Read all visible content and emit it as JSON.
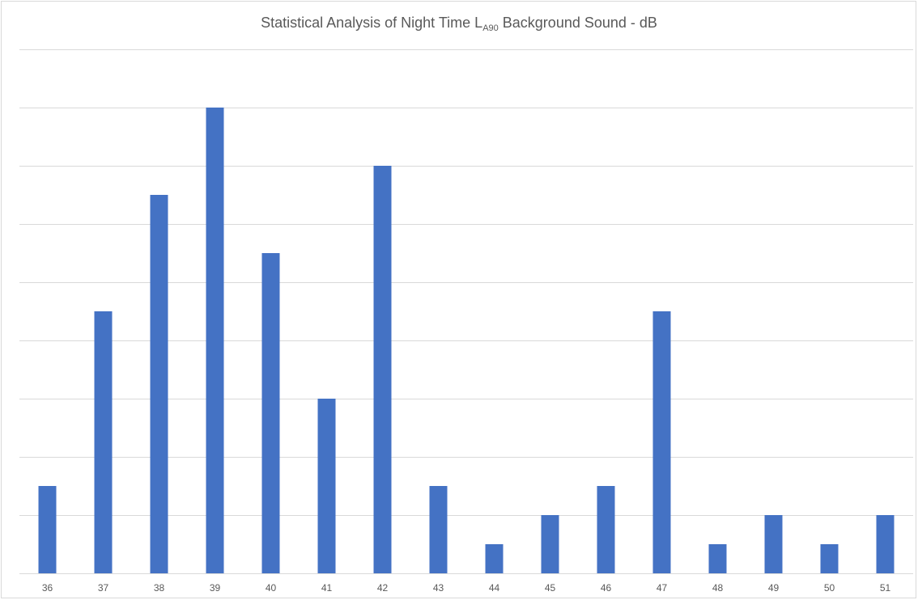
{
  "chart_data": {
    "type": "bar",
    "title": {
      "prefix": "Statistical Analysis of Night Time L",
      "subscript": "A90",
      "suffix": " Background Sound  - dB"
    },
    "xlabel": "",
    "ylabel": "",
    "categories": [
      "36",
      "37",
      "38",
      "39",
      "40",
      "41",
      "42",
      "43",
      "44",
      "45",
      "46",
      "47",
      "48",
      "49",
      "50",
      "51"
    ],
    "values": [
      3,
      9,
      13,
      16,
      11,
      6,
      14,
      3,
      1,
      2,
      3,
      9,
      1,
      2,
      1,
      2
    ],
    "ylim": [
      0,
      18
    ],
    "y_gridline_step": 2,
    "grid": true,
    "y_tick_labels_shown": false,
    "bar_color": "#4472c4",
    "gridline_color": "#d9d9d9",
    "text_color": "#595959"
  }
}
